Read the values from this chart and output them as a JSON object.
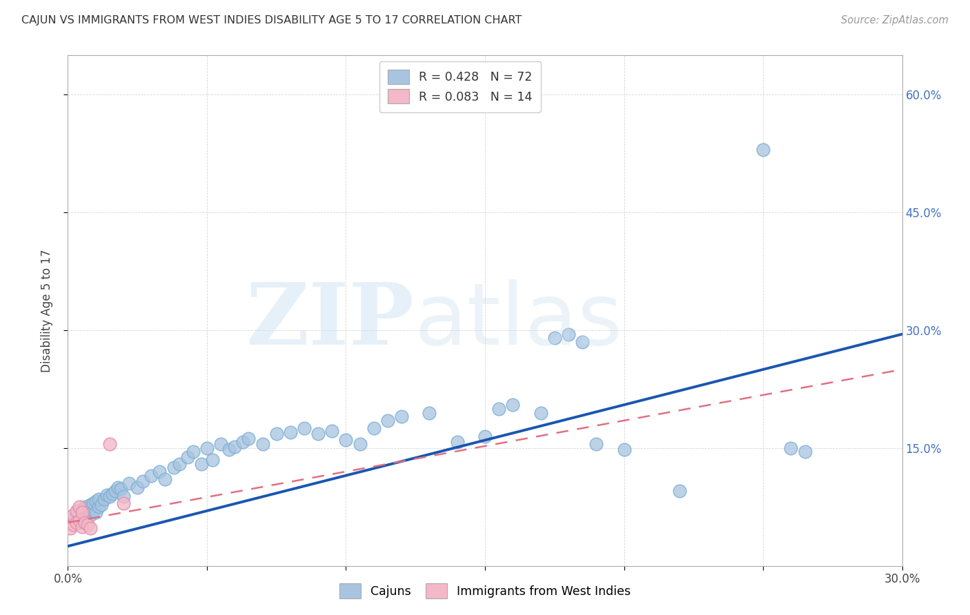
{
  "title": "CAJUN VS IMMIGRANTS FROM WEST INDIES DISABILITY AGE 5 TO 17 CORRELATION CHART",
  "source": "Source: ZipAtlas.com",
  "ylabel": "Disability Age 5 to 17",
  "xmin": 0.0,
  "xmax": 0.3,
  "ymin": 0.0,
  "ymax": 0.65,
  "xtick_pos": [
    0.0,
    0.05,
    0.1,
    0.15,
    0.2,
    0.25,
    0.3
  ],
  "xtick_labels": [
    "0.0%",
    "",
    "",
    "",
    "",
    "",
    "30.0%"
  ],
  "ytick_positions": [
    0.15,
    0.3,
    0.45,
    0.6
  ],
  "ytick_labels": [
    "15.0%",
    "30.0%",
    "45.0%",
    "60.0%"
  ],
  "cajun_R": 0.428,
  "cajun_N": 72,
  "west_indies_R": 0.083,
  "west_indies_N": 14,
  "cajun_color": "#a8c4e0",
  "west_indies_color": "#f4b8c8",
  "cajun_line_color": "#1a56b0",
  "west_indies_line_color": "#e07080",
  "legend_R_color": "#3366cc",
  "legend_N_color": "#cc0000",
  "cajun_x": [
    0.002,
    0.003,
    0.003,
    0.004,
    0.004,
    0.005,
    0.005,
    0.006,
    0.006,
    0.007,
    0.007,
    0.008,
    0.008,
    0.009,
    0.009,
    0.01,
    0.01,
    0.011,
    0.011,
    0.012,
    0.013,
    0.014,
    0.015,
    0.016,
    0.017,
    0.018,
    0.019,
    0.02,
    0.022,
    0.025,
    0.027,
    0.03,
    0.033,
    0.035,
    0.038,
    0.04,
    0.043,
    0.045,
    0.048,
    0.05,
    0.052,
    0.055,
    0.058,
    0.06,
    0.063,
    0.065,
    0.07,
    0.075,
    0.08,
    0.085,
    0.09,
    0.095,
    0.1,
    0.105,
    0.11,
    0.115,
    0.12,
    0.13,
    0.14,
    0.15,
    0.155,
    0.16,
    0.17,
    0.175,
    0.18,
    0.185,
    0.19,
    0.2,
    0.22,
    0.25,
    0.26,
    0.265
  ],
  "cajun_y": [
    0.06,
    0.065,
    0.068,
    0.055,
    0.07,
    0.06,
    0.072,
    0.063,
    0.075,
    0.068,
    0.072,
    0.065,
    0.078,
    0.07,
    0.08,
    0.068,
    0.082,
    0.075,
    0.085,
    0.078,
    0.085,
    0.09,
    0.088,
    0.092,
    0.095,
    0.1,
    0.098,
    0.088,
    0.105,
    0.1,
    0.108,
    0.115,
    0.12,
    0.11,
    0.125,
    0.13,
    0.138,
    0.145,
    0.13,
    0.15,
    0.135,
    0.155,
    0.148,
    0.152,
    0.158,
    0.162,
    0.155,
    0.168,
    0.17,
    0.175,
    0.168,
    0.172,
    0.16,
    0.155,
    0.175,
    0.185,
    0.19,
    0.195,
    0.158,
    0.165,
    0.2,
    0.205,
    0.195,
    0.29,
    0.295,
    0.285,
    0.155,
    0.148,
    0.095,
    0.53,
    0.15,
    0.145
  ],
  "west_indies_x": [
    0.001,
    0.002,
    0.002,
    0.003,
    0.003,
    0.004,
    0.004,
    0.005,
    0.005,
    0.006,
    0.007,
    0.008,
    0.015,
    0.02
  ],
  "west_indies_y": [
    0.048,
    0.052,
    0.065,
    0.055,
    0.07,
    0.058,
    0.075,
    0.05,
    0.068,
    0.055,
    0.052,
    0.048,
    0.155,
    0.08
  ],
  "cajun_line_x0": 0.0,
  "cajun_line_y0": 0.025,
  "cajun_line_x1": 0.3,
  "cajun_line_y1": 0.295,
  "wi_line_x0": 0.0,
  "wi_line_y0": 0.055,
  "wi_line_x1": 0.3,
  "wi_line_y1": 0.25
}
